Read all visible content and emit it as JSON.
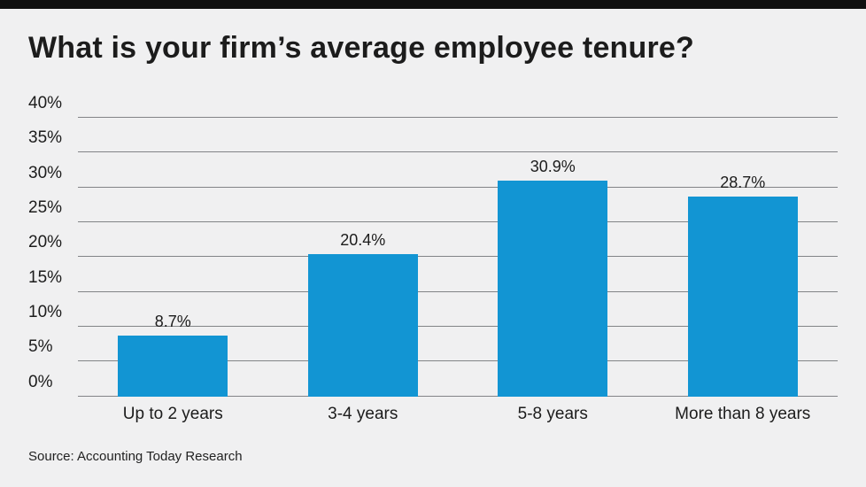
{
  "page": {
    "background_color": "#f0f0f1",
    "accent_bar_color": "#101010",
    "text_color": "#1c1c1c"
  },
  "chart_data": {
    "type": "bar",
    "title": "What is your firm’s average employee tenure?",
    "categories": [
      "Up to 2 years",
      "3-4 years",
      "5-8 years",
      "More than 8 years"
    ],
    "values": [
      8.7,
      20.4,
      30.9,
      28.7
    ],
    "value_labels": [
      "8.7%",
      "20.4%",
      "30.9%",
      "28.7%"
    ],
    "xlabel": "",
    "ylabel": "",
    "ylim": [
      0,
      40
    ],
    "ytick_step": 5,
    "ytick_labels": [
      "0%",
      "5%",
      "10%",
      "15%",
      "20%",
      "25%",
      "30%",
      "35%",
      "40%"
    ],
    "grid": true,
    "legend": "none",
    "bar_color": "#1295d3",
    "gridline_color": "#828487"
  },
  "footer": {
    "source": "Source: Accounting Today Research"
  }
}
